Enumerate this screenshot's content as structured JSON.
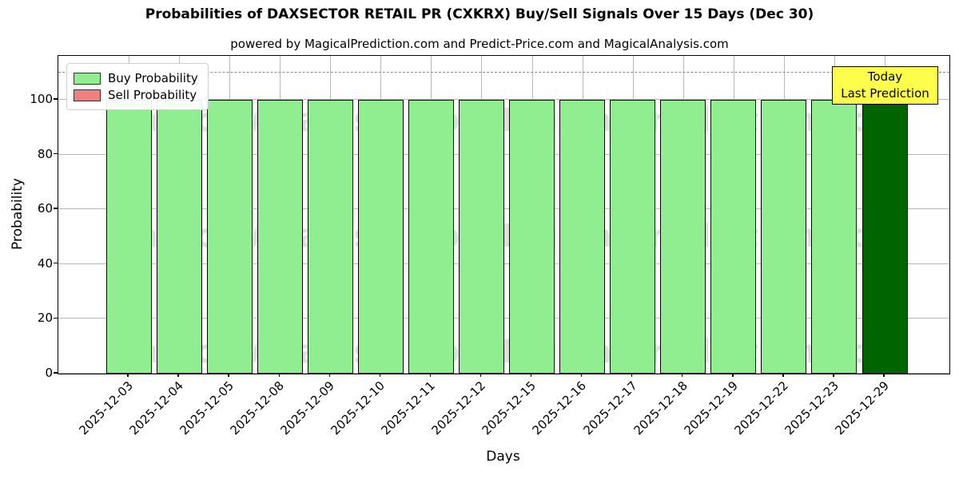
{
  "title": "Probabilities of DAXSECTOR RETAIL PR (CXKRX) Buy/Sell Signals Over 15 Days (Dec 30)",
  "subtitle": "powered by MagicalPrediction.com and Predict-Price.com and MagicalAnalysis.com",
  "legend": {
    "buy_label": "Buy Probability",
    "sell_label": "Sell Probability"
  },
  "annotation": {
    "line1": "Today",
    "line2": "Last Prediction"
  },
  "axes": {
    "ylabel": "Probability",
    "xlabel": "Days",
    "yticks": [
      0,
      20,
      40,
      60,
      80,
      100
    ]
  },
  "watermarks": {
    "left": "MagicalAnalysis.com",
    "right": "MagicalPrediction.com"
  },
  "colors": {
    "buy": "#90ee90",
    "sell": "#f08080",
    "last_bar": "#006400",
    "annotation_bg": "#fdfd4b",
    "grid": "#b8b8b8",
    "dashed_line": "#8a8a8a",
    "watermark": "rgba(128,128,128,0.25)"
  },
  "chart_data": {
    "type": "bar",
    "title": "Probabilities of DAXSECTOR RETAIL PR (CXKRX) Buy/Sell Signals Over 15 Days (Dec 30)",
    "xlabel": "Days",
    "ylabel": "Probability",
    "categories": [
      "2025-12-03",
      "2025-12-04",
      "2025-12-05",
      "2025-12-08",
      "2025-12-09",
      "2025-12-10",
      "2025-12-11",
      "2025-12-12",
      "2025-12-15",
      "2025-12-16",
      "2025-12-17",
      "2025-12-18",
      "2025-12-19",
      "2025-12-22",
      "2025-12-23",
      "2025-12-29"
    ],
    "series": [
      {
        "name": "Buy Probability",
        "color": "#90ee90",
        "values": [
          100,
          100,
          100,
          100,
          100,
          100,
          100,
          100,
          100,
          100,
          100,
          100,
          100,
          100,
          100,
          100
        ]
      },
      {
        "name": "Sell Probability",
        "color": "#f08080",
        "values": [
          0,
          0,
          0,
          0,
          0,
          0,
          0,
          0,
          0,
          0,
          0,
          0,
          0,
          0,
          0,
          0
        ]
      }
    ],
    "bar_colors": [
      "#90ee90",
      "#90ee90",
      "#90ee90",
      "#90ee90",
      "#90ee90",
      "#90ee90",
      "#90ee90",
      "#90ee90",
      "#90ee90",
      "#90ee90",
      "#90ee90",
      "#90ee90",
      "#90ee90",
      "#90ee90",
      "#90ee90",
      "#006400"
    ],
    "ylim": [
      0,
      116
    ],
    "dashed_line_y": 110,
    "grid": true,
    "legend_position": "upper left"
  }
}
